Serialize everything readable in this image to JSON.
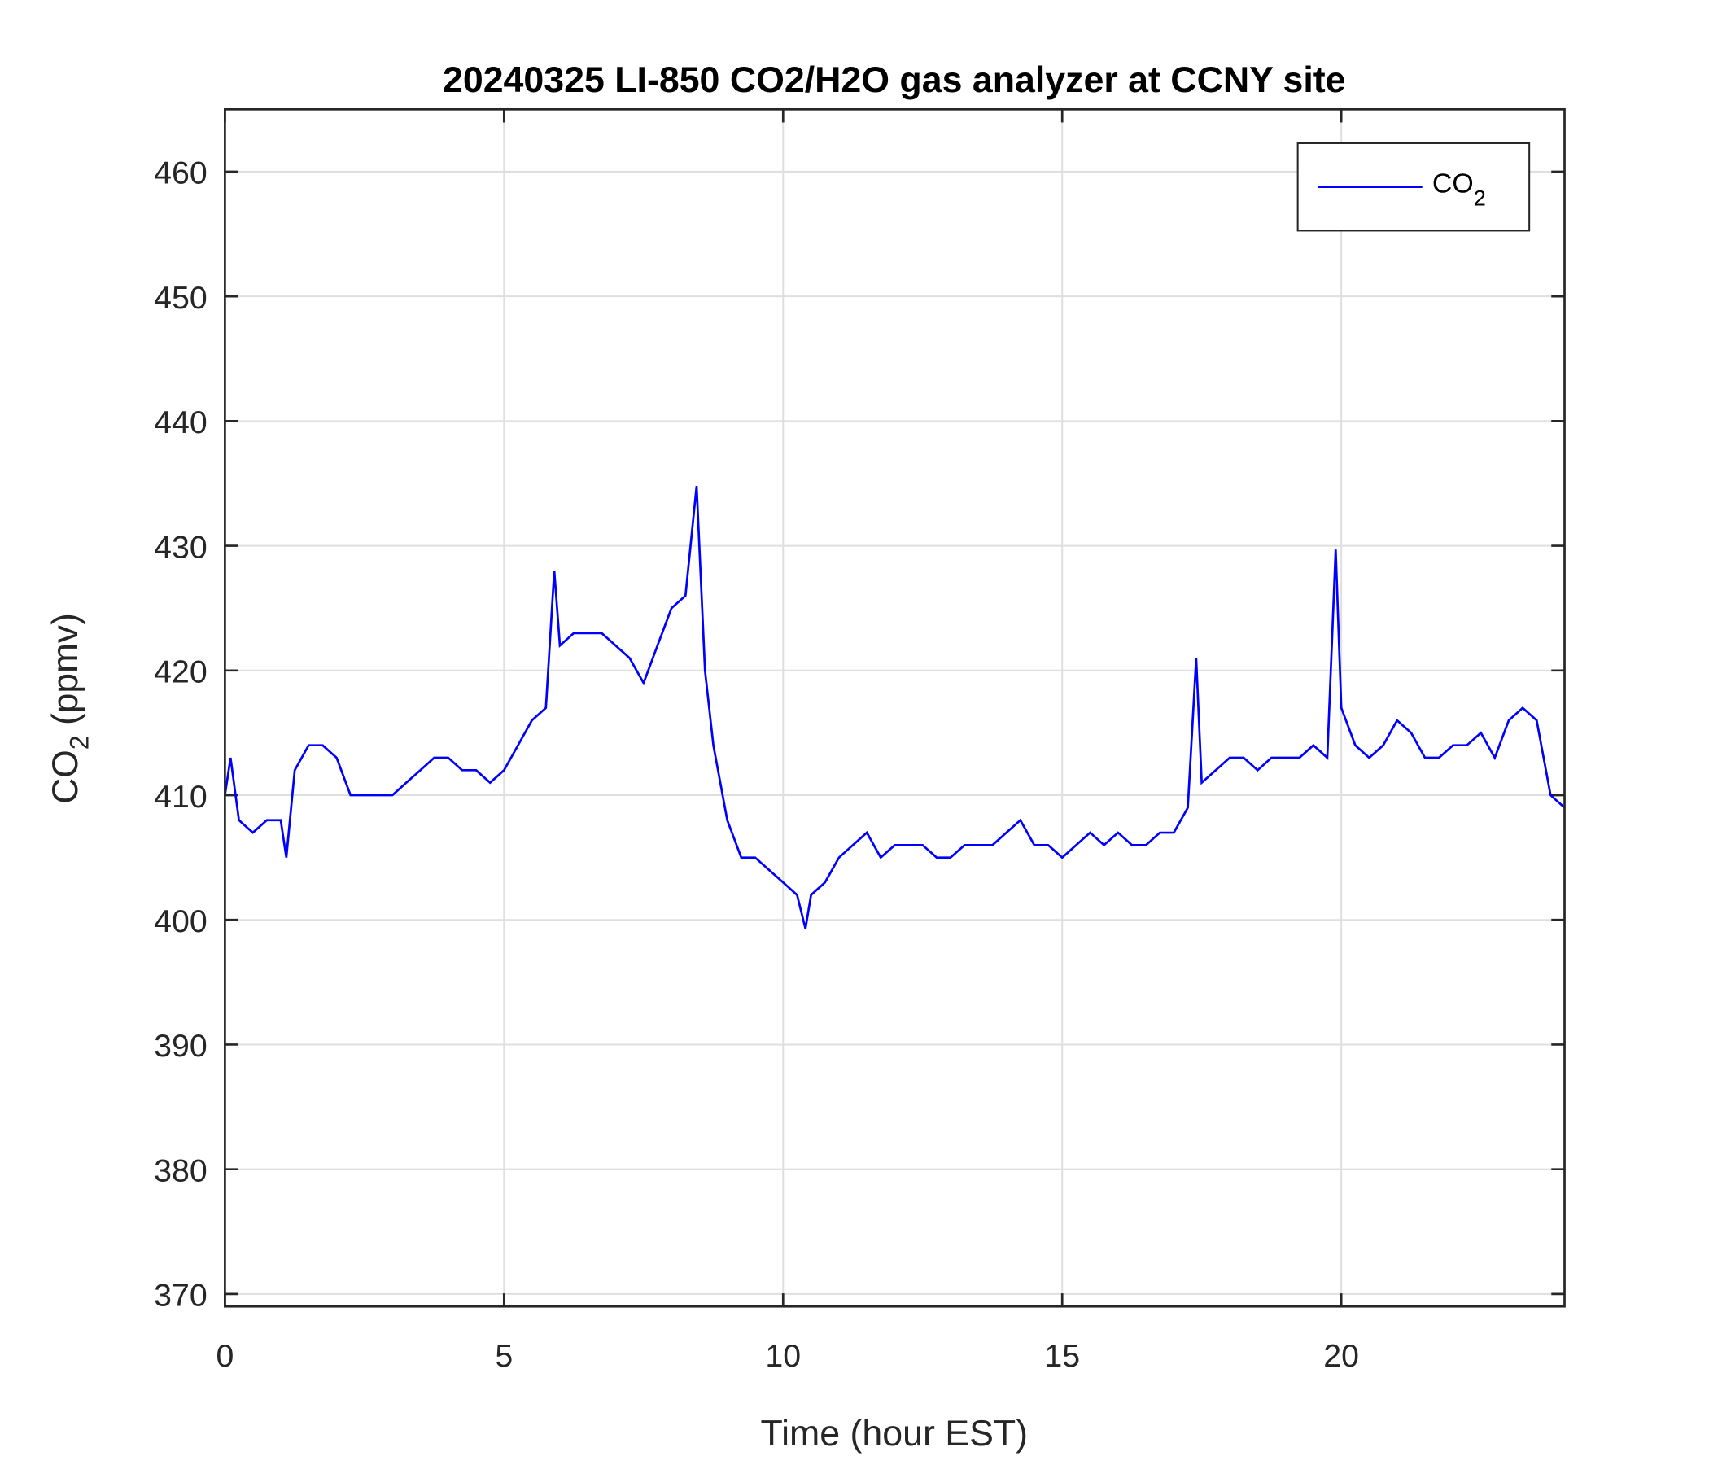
{
  "chart_data": {
    "type": "line",
    "title": "20240325 LI-850 CO2/H2O gas analyzer at CCNY site",
    "xlabel": "Time (hour EST)",
    "ylabel": {
      "main": "CO",
      "sub": "2",
      "rest": " (ppmv)"
    },
    "xlim": [
      0,
      24
    ],
    "ylim": [
      369,
      465
    ],
    "xticks": [
      0,
      5,
      10,
      15,
      20
    ],
    "yticks": [
      370,
      380,
      390,
      400,
      410,
      420,
      430,
      440,
      450,
      460
    ],
    "grid": true,
    "legend": {
      "placement": "top-right",
      "entries": [
        {
          "main": "CO",
          "sub": "2"
        }
      ]
    },
    "series": [
      {
        "name": "CO2",
        "color": "#0000ff",
        "x": [
          0,
          0.1,
          0.25,
          0.5,
          0.75,
          1,
          1.1,
          1.25,
          1.5,
          1.75,
          2,
          2.25,
          2.5,
          2.75,
          3,
          3.25,
          3.5,
          3.75,
          4,
          4.25,
          4.5,
          4.75,
          5,
          5.25,
          5.5,
          5.75,
          5.9,
          6,
          6.25,
          6.5,
          6.75,
          7,
          7.25,
          7.5,
          7.75,
          8,
          8.25,
          8.45,
          8.6,
          8.75,
          9,
          9.25,
          9.5,
          9.75,
          10,
          10.25,
          10.4,
          10.5,
          10.75,
          11,
          11.25,
          11.5,
          11.75,
          12,
          12.25,
          12.5,
          12.75,
          13,
          13.25,
          13.5,
          13.75,
          14,
          14.25,
          14.5,
          14.75,
          15,
          15.25,
          15.5,
          15.75,
          16,
          16.25,
          16.5,
          16.75,
          17,
          17.25,
          17.4,
          17.5,
          17.75,
          18,
          18.25,
          18.5,
          18.75,
          19,
          19.25,
          19.5,
          19.75,
          19.9,
          20,
          20.25,
          20.5,
          20.75,
          21,
          21.25,
          21.5,
          21.75,
          22,
          22.25,
          22.5,
          22.75,
          23,
          23.25,
          23.5,
          23.75,
          24
        ],
        "y": [
          410,
          413,
          408,
          407,
          408,
          408,
          405,
          412,
          414,
          414,
          413,
          410,
          410,
          410,
          410,
          411,
          412,
          413,
          413,
          412,
          412,
          411,
          412,
          414,
          416,
          417,
          428,
          422,
          423,
          423,
          423,
          422,
          421,
          419,
          422,
          425,
          426,
          434.8,
          420,
          414,
          408,
          405,
          405,
          404,
          403,
          402,
          399.3,
          402,
          403,
          405,
          406,
          407,
          405,
          406,
          406,
          406,
          405,
          405,
          406,
          406,
          406,
          407,
          408,
          406,
          406,
          405,
          406,
          407,
          406,
          407,
          406,
          406,
          407,
          407,
          409,
          421,
          411,
          412,
          413,
          413,
          412,
          413,
          413,
          413,
          414,
          413,
          429.7,
          417,
          414,
          413,
          414,
          416,
          415,
          413,
          413,
          414,
          414,
          415,
          413,
          416,
          417,
          416,
          410,
          409
        ]
      }
    ]
  }
}
